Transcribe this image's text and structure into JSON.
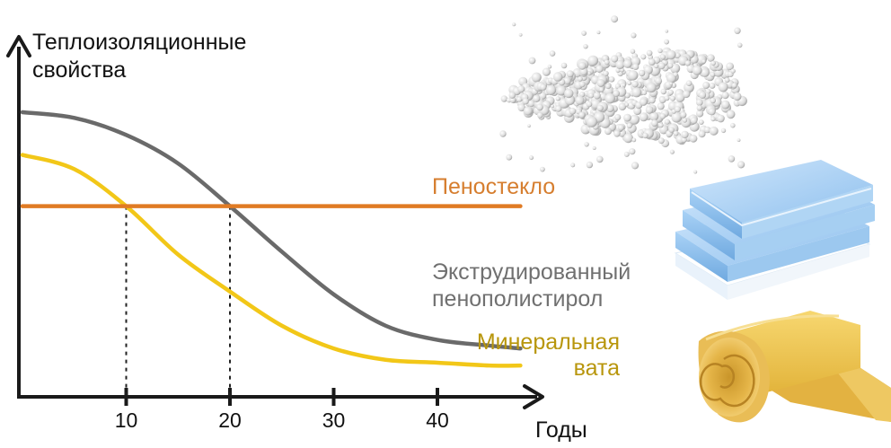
{
  "chart_data": {
    "type": "line",
    "title": "",
    "ylabel_lines": [
      "Теплоизоляционные",
      "свойства"
    ],
    "xlabel": "Годы",
    "x_ticks": [
      10,
      20,
      30,
      40
    ],
    "xlim": [
      0,
      50
    ],
    "ylim": [
      0,
      1
    ],
    "y_scale_shown": false,
    "grid": false,
    "legend": "inline labels at right end of each curve",
    "crossover_markers": [
      10,
      20
    ],
    "series": [
      {
        "name_lines": [
          "Пеностекло"
        ],
        "color": "#e07b24",
        "x": [
          0,
          10,
          20,
          30,
          40,
          48
        ],
        "y": [
          0.67,
          0.67,
          0.67,
          0.67,
          0.67,
          0.67
        ]
      },
      {
        "name_lines": [
          "Экструдированный",
          "пенополистирол"
        ],
        "color": "#6a6a6a",
        "x": [
          0,
          5,
          10,
          15,
          20,
          25,
          30,
          35,
          40,
          45,
          48
        ],
        "y": [
          1.0,
          0.98,
          0.92,
          0.82,
          0.67,
          0.51,
          0.36,
          0.25,
          0.2,
          0.18,
          0.17
        ]
      },
      {
        "name_lines": [
          "Минеральная",
          "вата"
        ],
        "color": "#f2c718",
        "x": [
          0,
          5,
          10,
          15,
          20,
          25,
          30,
          35,
          40,
          45,
          48
        ],
        "y": [
          0.85,
          0.8,
          0.67,
          0.5,
          0.37,
          0.25,
          0.17,
          0.13,
          0.12,
          0.11,
          0.11
        ]
      }
    ],
    "series_label_colors": [
      "#d67e2f",
      "#707070",
      "#b8960c"
    ]
  },
  "illustrations": {
    "top": "polystyrene-beads-photo",
    "middle": "xps-boards-photo",
    "bottom": "mineral-wool-roll-photo"
  }
}
